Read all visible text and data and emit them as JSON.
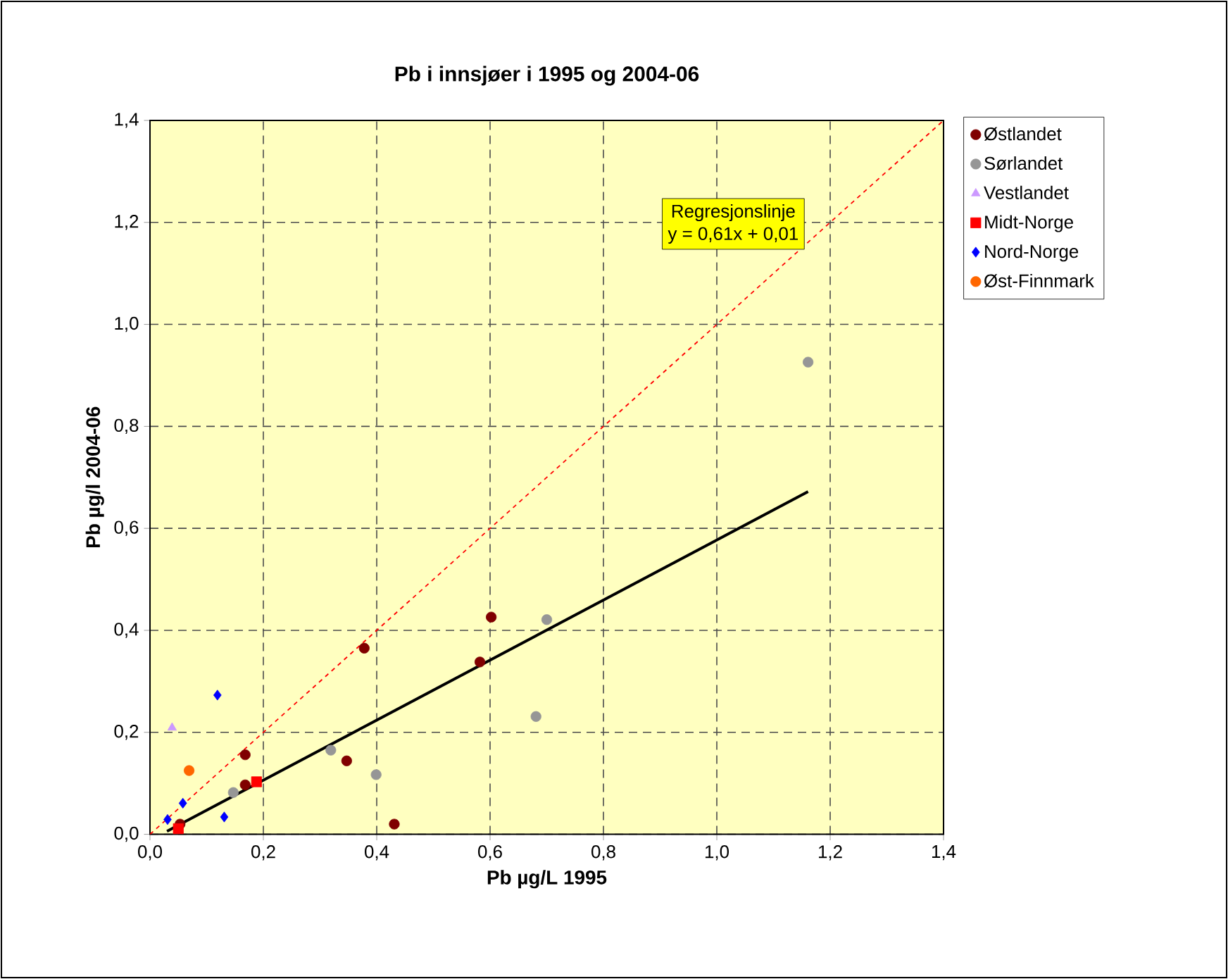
{
  "chart_data": {
    "type": "scatter",
    "title": "Pb i innsjøer i 1995 og 2004-06",
    "xlabel": "Pb µg/L 1995",
    "ylabel": "Pb µg/l 2004-06",
    "xlim": [
      0,
      1.4
    ],
    "ylim": [
      0,
      1.4
    ],
    "xticks": [
      {
        "value": 0,
        "label": "0,0"
      },
      {
        "value": 0.2,
        "label": "0,2"
      },
      {
        "value": 0.4,
        "label": "0,4"
      },
      {
        "value": 0.6,
        "label": "0,6"
      },
      {
        "value": 0.8,
        "label": "0,8"
      },
      {
        "value": 1.0,
        "label": "1,0"
      },
      {
        "value": 1.2,
        "label": "1,2"
      },
      {
        "value": 1.4,
        "label": "1,4"
      }
    ],
    "yticks": [
      {
        "value": 0,
        "label": "0,0"
      },
      {
        "value": 0.2,
        "label": "0,2"
      },
      {
        "value": 0.4,
        "label": "0,4"
      },
      {
        "value": 0.6,
        "label": "0,6"
      },
      {
        "value": 0.8,
        "label": "0,8"
      },
      {
        "value": 1.0,
        "label": "1,0"
      },
      {
        "value": 1.2,
        "label": "1,2"
      },
      {
        "value": 1.4,
        "label": "1,4"
      }
    ],
    "grid": true,
    "legend": "right",
    "annotations": [
      "Regresjonslinje",
      "y = 0,61x + 0,01"
    ],
    "series": [
      {
        "name": "Østlandet",
        "color": "#800000",
        "marker": "circle",
        "x": [
          0.378,
          0.168,
          0.347,
          0.431,
          0.168,
          0.053,
          0.602,
          0.582
        ],
        "values": [
          0.365,
          0.156,
          0.144,
          0.02,
          0.097,
          0.02,
          0.426,
          0.338
        ]
      },
      {
        "name": "Sørlandet",
        "color": "#969696",
        "marker": "circle",
        "x": [
          0.319,
          0.399,
          0.147,
          0.7,
          0.681,
          1.161
        ],
        "values": [
          0.165,
          0.117,
          0.082,
          0.421,
          0.231,
          0.926
        ]
      },
      {
        "name": "Vestlandet",
        "color": "#cc99ff",
        "marker": "triangle",
        "x": [
          0.039
        ],
        "values": [
          0.209
        ]
      },
      {
        "name": "Midt-Norge",
        "color": "#ff0000",
        "marker": "square",
        "x": [
          0.188,
          0.05
        ],
        "values": [
          0.103,
          0.011
        ]
      },
      {
        "name": "Nord-Norge",
        "color": "#0000ff",
        "marker": "diamond",
        "x": [
          0.119,
          0.058,
          0.031,
          0.131
        ],
        "values": [
          0.273,
          0.061,
          0.029,
          0.034
        ]
      },
      {
        "name": "Øst-Finnmark",
        "color": "#ff6600",
        "marker": "circle",
        "x": [
          0.069
        ],
        "values": [
          0.125
        ]
      },
      {
        "type": "line",
        "color": "#000000",
        "marker": "none",
        "line_style": "solid",
        "x": [
          0.03,
          1.161
        ],
        "values": [
          0.006,
          0.672
        ]
      },
      {
        "type": "line",
        "color": "#ff0000",
        "marker": "none",
        "line_style": "dashed",
        "x": [
          0,
          1.4
        ],
        "values": [
          0,
          1.4
        ]
      }
    ]
  }
}
